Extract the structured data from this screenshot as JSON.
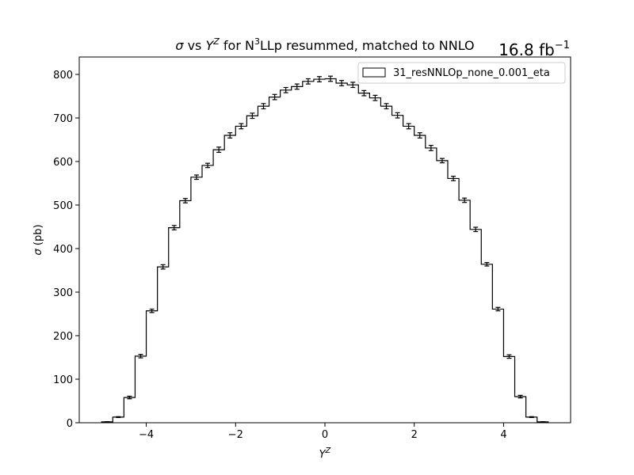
{
  "chart_data": {
    "type": "histogram-step",
    "title_parts": {
      "sigma": "σ",
      "vs": " vs ",
      "Y": "Y",
      "Z": "Z",
      "for": " for N",
      "three": "3",
      "rest": "LLp resummed, matched to NNLO"
    },
    "luminosity": {
      "value": "16.8 fb",
      "exponent": "−1"
    },
    "xlabel": {
      "base": "Y",
      "sup": "Z"
    },
    "ylabel": {
      "sigma": "σ",
      "unit": " (pb)"
    },
    "xlim": [
      -5.5,
      5.5
    ],
    "ylim": [
      0,
      840
    ],
    "xticks": [
      -4,
      -2,
      0,
      2,
      4
    ],
    "xtick_labels": [
      "−4",
      "−2",
      "0",
      "2",
      "4"
    ],
    "yticks": [
      0,
      100,
      200,
      300,
      400,
      500,
      600,
      700,
      800
    ],
    "ytick_labels": [
      "0",
      "100",
      "200",
      "300",
      "400",
      "500",
      "600",
      "700",
      "800"
    ],
    "legend": {
      "label": "31_resNNLOp_none_0.001_eta",
      "placement": "upper right"
    },
    "bin_edges": [
      -5.0,
      -4.75,
      -4.5,
      -4.25,
      -4.0,
      -3.75,
      -3.5,
      -3.25,
      -3.0,
      -2.75,
      -2.5,
      -2.25,
      -2.0,
      -1.75,
      -1.5,
      -1.25,
      -1.0,
      -0.75,
      -0.5,
      -0.25,
      0.0,
      0.25,
      0.5,
      0.75,
      1.0,
      1.25,
      1.5,
      1.75,
      2.0,
      2.25,
      2.5,
      2.75,
      3.0,
      3.25,
      3.5,
      3.75,
      4.0,
      4.25,
      4.5,
      4.75,
      5.0
    ],
    "values": [
      2,
      13,
      58,
      153,
      257,
      358,
      448,
      510,
      564,
      591,
      627,
      660,
      681,
      705,
      727,
      748,
      764,
      772,
      784,
      789,
      790,
      780,
      776,
      757,
      746,
      727,
      706,
      681,
      660,
      631,
      602,
      561,
      511,
      444,
      364,
      261,
      152,
      60,
      13,
      2
    ],
    "errors": [
      0.5,
      1,
      3,
      4,
      4,
      5,
      5,
      5,
      5,
      5,
      6,
      6,
      6,
      6,
      6,
      6,
      6,
      6,
      6,
      6,
      6,
      6,
      6,
      6,
      6,
      6,
      6,
      6,
      6,
      6,
      5,
      5,
      5,
      5,
      4,
      4,
      4,
      3,
      1,
      0.5
    ]
  }
}
